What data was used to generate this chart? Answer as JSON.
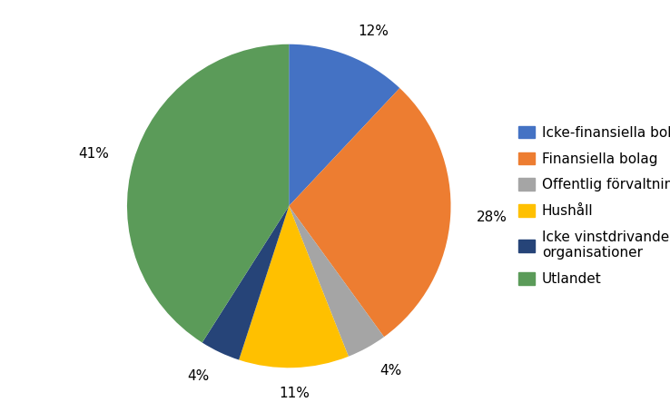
{
  "labels": [
    "Icke-finansiella bolag",
    "Finansiella bolag",
    "Offentlig förvaltning",
    "Hushåll",
    "Icke vinstdrivande organisationer",
    "Utlandet"
  ],
  "values": [
    12,
    28,
    4,
    11,
    4,
    41
  ],
  "colors": [
    "#4472C4",
    "#ED7D31",
    "#A5A5A5",
    "#FFC000",
    "#264478",
    "#5B9B59"
  ],
  "pct_labels": [
    "12%",
    "28%",
    "4%",
    "11%",
    "4%",
    "41%"
  ],
  "legend_labels": [
    "Icke-finansiella bolag",
    "Finansiella bolag",
    "Offentlig förvaltning",
    "Hushåll",
    "Icke vinstdrivande\norganisationer",
    "Utlandet"
  ],
  "legend_colors": [
    "#4472C4",
    "#ED7D31",
    "#A5A5A5",
    "#FFC000",
    "#264478",
    "#5B9B59"
  ],
  "startangle": 90,
  "background_color": "#FFFFFF",
  "label_fontsize": 11,
  "legend_fontsize": 11
}
